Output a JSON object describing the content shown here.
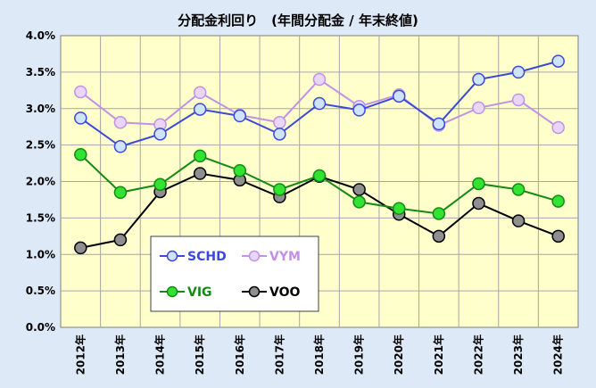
{
  "chart_data": {
    "type": "line",
    "title": "分配金利回り　(年間分配金 / 年末終値)",
    "categories": [
      "2012年",
      "2013年",
      "2014年",
      "2015年",
      "2016年",
      "2017年",
      "2018年",
      "2019年",
      "2020年",
      "2021年",
      "2022年",
      "2023年",
      "2024年"
    ],
    "y_ticks": [
      "0.0%",
      "0.5%",
      "1.0%",
      "1.5%",
      "2.0%",
      "2.5%",
      "3.0%",
      "3.5%",
      "4.0%"
    ],
    "ylim": [
      0,
      0.04
    ],
    "grid": true,
    "legend_position": "bottom-left",
    "series": [
      {
        "name": "SCHD",
        "color": "#3b49d8",
        "marker_fill": "#cfe3fb",
        "values": [
          0.0287,
          0.0248,
          0.0265,
          0.0299,
          0.029,
          0.0265,
          0.0307,
          0.0298,
          0.0317,
          0.0279,
          0.034,
          0.035,
          0.0365
        ]
      },
      {
        "name": "VYM",
        "color": "#c290e8",
        "marker_fill": "#e8d7fb",
        "values": [
          0.0323,
          0.0281,
          0.0278,
          0.0322,
          0.0291,
          0.0281,
          0.034,
          0.0303,
          0.0319,
          0.0277,
          0.0301,
          0.0312,
          0.0274
        ]
      },
      {
        "name": "VIG",
        "color": "#138a13",
        "marker_fill": "#33e333",
        "values": [
          0.0237,
          0.0185,
          0.0196,
          0.0235,
          0.0215,
          0.0189,
          0.0208,
          0.0172,
          0.0163,
          0.0156,
          0.0197,
          0.0189,
          0.0173
        ]
      },
      {
        "name": "VOO",
        "color": "#000000",
        "marker_fill": "#8f8f8f",
        "values": [
          0.0109,
          0.012,
          0.0186,
          0.0211,
          0.0202,
          0.0179,
          0.0207,
          0.0189,
          0.0155,
          0.0125,
          0.017,
          0.0146,
          0.0125
        ]
      }
    ]
  }
}
